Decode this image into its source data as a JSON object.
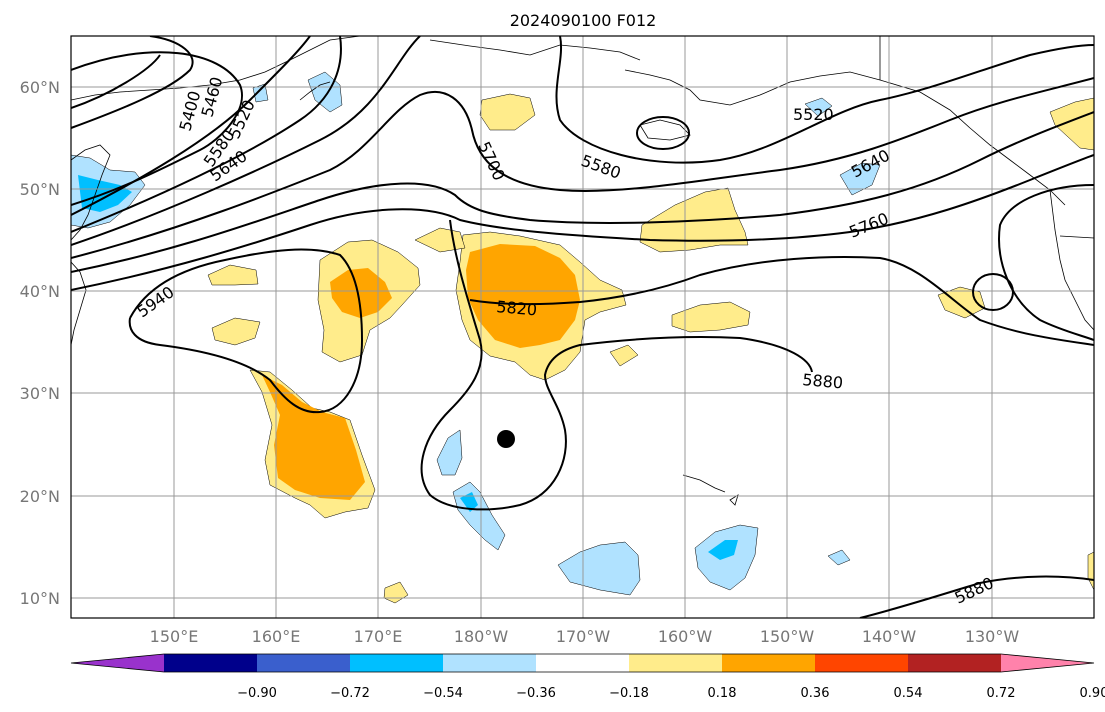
{
  "title": "2024090100 F012",
  "lat_labels": [
    "60°N",
    "50°N",
    "40°N",
    "30°N",
    "20°N",
    "10°N"
  ],
  "lon_labels": [
    "150°E",
    "160°E",
    "170°E",
    "180°W",
    "170°W",
    "160°W",
    "150°W",
    "140°W",
    "130°W"
  ],
  "colorbar": {
    "ticks": [
      "−0.90",
      "−0.72",
      "−0.54",
      "−0.36",
      "−0.18",
      "0.18",
      "0.36",
      "0.54",
      "0.72",
      "0.90"
    ],
    "colors": [
      "#9932cc",
      "#00008b",
      "#3a5fcd",
      "#00bfff",
      "#b0e2ff",
      "#ffffff",
      "#ffec8b",
      "#ffa500",
      "#ff4500",
      "#b22222",
      "#ff82ab"
    ]
  },
  "contour_labels": [
    "5400",
    "5460",
    "5520",
    "5580",
    "5640",
    "5700",
    "5580",
    "5520",
    "5640",
    "5760",
    "5940",
    "5820",
    "5880",
    "5880"
  ],
  "marker": "storm-center-dot"
}
